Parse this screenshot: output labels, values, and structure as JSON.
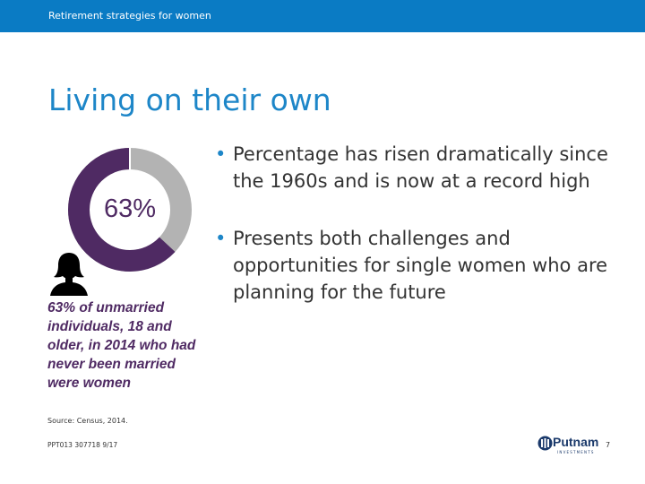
{
  "header": {
    "subtitle": "Retirement strategies for women",
    "bar_color": "#0a7bc4"
  },
  "title": "Living on their own",
  "stat": {
    "percent_label": "63%",
    "percent_value": 0.63,
    "primary_color": "#4f2a63",
    "secondary_color": "#b3b3b3",
    "icon": "woman-silhouette-icon",
    "caption": "63% of unmarried individuals, 18 and older, in 2014 who had never been married were women"
  },
  "source": "Source: Census, 2014.",
  "bullets": [
    "Percentage has risen dramatically since the 1960s and is now at a record high",
    "Presents both challenges and opportunities for single women who are planning for the future"
  ],
  "footer": {
    "code": "PPT013 307718 9/17",
    "logo_name": "Putnam",
    "logo_sub": "INVESTMENTS",
    "page_number": "7"
  }
}
